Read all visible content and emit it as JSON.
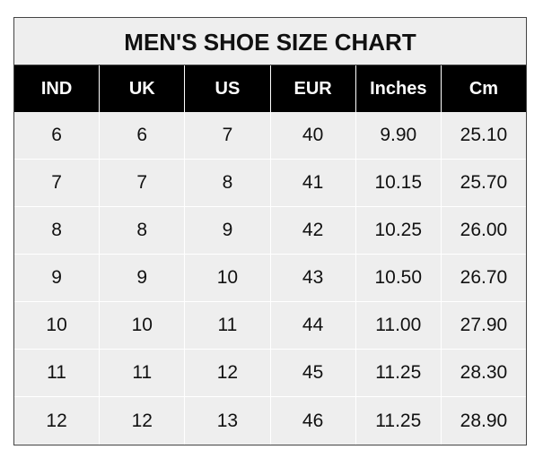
{
  "chart_data": {
    "type": "table",
    "title": "MEN'S SHOE SIZE CHART",
    "columns": [
      "IND",
      "UK",
      "US",
      "EUR",
      "Inches",
      "Cm"
    ],
    "rows": [
      [
        "6",
        "6",
        "7",
        "40",
        "9.90",
        "25.10"
      ],
      [
        "7",
        "7",
        "8",
        "41",
        "10.15",
        "25.70"
      ],
      [
        "8",
        "8",
        "9",
        "42",
        "10.25",
        "26.00"
      ],
      [
        "9",
        "9",
        "10",
        "43",
        "10.50",
        "26.70"
      ],
      [
        "10",
        "10",
        "11",
        "44",
        "11.00",
        "27.90"
      ],
      [
        "11",
        "11",
        "12",
        "45",
        "11.25",
        "28.30"
      ],
      [
        "12",
        "12",
        "13",
        "46",
        "11.25",
        "28.90"
      ]
    ],
    "colors": {
      "header_bg": "#000000",
      "header_text": "#ffffff",
      "cell_bg": "#eeeeee",
      "grid": "#ffffff"
    }
  }
}
